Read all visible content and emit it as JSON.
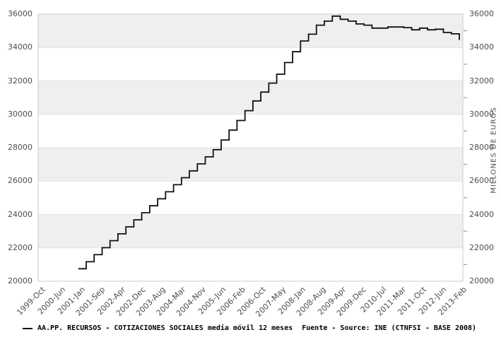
{
  "chart_data": {
    "type": "line",
    "line_style": "step-after",
    "title": "",
    "source": "Fuente - Source: INE (CTNFSI - BASE 2008)",
    "ylabel": "MILLONES DE EUROS",
    "ylim": [
      20000,
      36000
    ],
    "ytick_step": 2000,
    "y_minor_tick_step": 1000,
    "grid": "horizontal-bands",
    "legend_position": "bottom",
    "x_range": [
      "1999-Oct",
      "2013-Feb"
    ],
    "x_tick_labels": [
      "1999-Oct",
      "2000-Jun",
      "2001-Jan",
      "2001-Sep",
      "2002-Apr",
      "2002-Dec",
      "2003-Aug",
      "2004-Mar",
      "2004-Nov",
      "2005-Jun",
      "2006-Feb",
      "2006-Oct",
      "2007-May",
      "2008-Jan",
      "2008-Aug",
      "2009-Apr",
      "2009-Dec",
      "2010-Jul",
      "2011-Mar",
      "2011-Oct",
      "2012-Jun",
      "2013-Feb"
    ],
    "data_start_tick_label": "2001-Jan",
    "data_end_tick_label": "2013-Feb",
    "series": [
      {
        "name": "AA.PP. RECURSOS - COTIZACIONES SOCIALES media móvil 12 meses",
        "color": "#111111",
        "period": "quarterly",
        "start": "2001-Q1",
        "end": "2013-Q1",
        "values": [
          20750,
          21170,
          21590,
          22010,
          22430,
          22840,
          23260,
          23680,
          24100,
          24520,
          24940,
          25360,
          25780,
          26200,
          26610,
          27030,
          27450,
          27880,
          28460,
          29050,
          29630,
          30220,
          30800,
          31330,
          31870,
          32400,
          33100,
          33750,
          34390,
          34800,
          35340,
          35580,
          35880,
          35690,
          35580,
          35410,
          35340,
          35160,
          35160,
          35230,
          35230,
          35190,
          35060,
          35160,
          35060,
          35100,
          34900,
          34820,
          34450
        ]
      }
    ]
  },
  "colors": {
    "background": "#ffffff",
    "band": "#efefef",
    "band_alt": "#ffffff",
    "grid": "#e2e2e2",
    "border": "#c9c9c9",
    "minor_tick": "#888888",
    "tick_text": "#4d4d4d",
    "line": "#111111",
    "legend_text": "#000000"
  },
  "icons": {
    "legend_dash": "line-sample"
  }
}
